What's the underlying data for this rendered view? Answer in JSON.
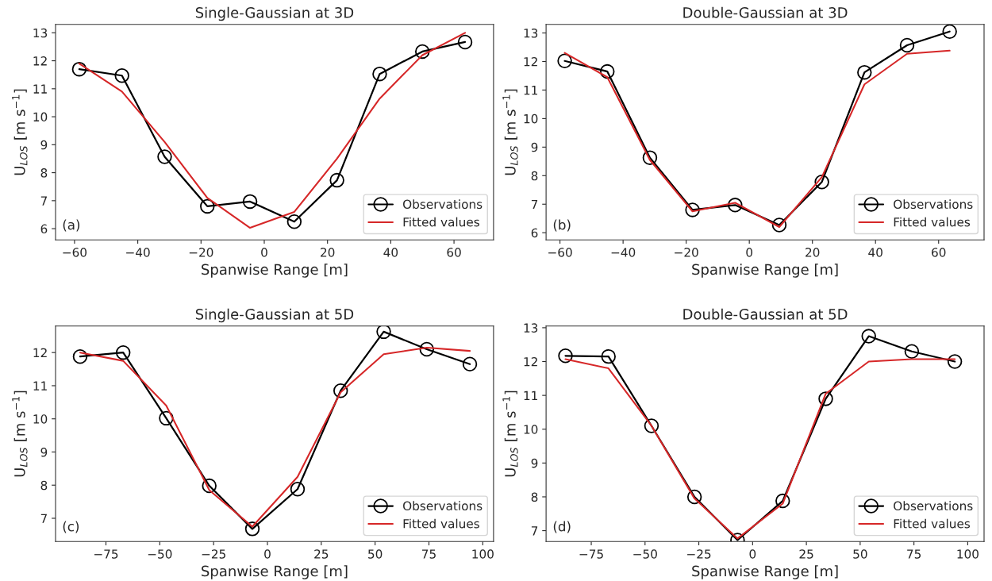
{
  "chart_data": [
    {
      "type": "line",
      "title": "Single-Gaussian at 3D",
      "xlabel": "Spanwise Range [m]",
      "ylabel": "U$_{LOS}$ [m s$^{−1}$]",
      "annotations": [
        "(a)"
      ],
      "x": [
        -58.5,
        -45,
        -31.5,
        -18,
        -4.5,
        9.5,
        23,
        36.5,
        50,
        63.5
      ],
      "series": [
        {
          "name": "Observations",
          "color": "#000000",
          "marker": "circle",
          "values": [
            11.7,
            11.47,
            8.57,
            6.8,
            6.97,
            6.25,
            7.73,
            11.53,
            12.33,
            12.67
          ]
        },
        {
          "name": "Fitted values",
          "color": "#d62728",
          "marker": "none",
          "values": [
            11.9,
            10.9,
            9.1,
            7.1,
            6.03,
            6.6,
            8.5,
            10.65,
            12.2,
            13.0
          ]
        }
      ],
      "xlim": [
        -66,
        72.5
      ],
      "xticks": [
        {
          "value": -60,
          "label": "−60"
        },
        {
          "value": -40,
          "label": "−40"
        },
        {
          "value": -20,
          "label": "−20"
        },
        0,
        20,
        40,
        60
      ],
      "ylim": [
        5.6,
        13.3
      ],
      "yticks": [
        6,
        7,
        8,
        9,
        10,
        11,
        12,
        13
      ],
      "legend": "lower right",
      "grid": false
    },
    {
      "type": "line",
      "title": "Double-Gaussian at 3D",
      "xlabel": "Spanwise Range [m]",
      "ylabel": "U$_{LOS}$ [m s$^{−1}$]",
      "annotations": [
        "(b)"
      ],
      "x": [
        -58.5,
        -45,
        -31.5,
        -18,
        -4.5,
        9.5,
        23,
        36.5,
        50,
        63.5
      ],
      "series": [
        {
          "name": "Observations",
          "color": "#000000",
          "marker": "circle",
          "values": [
            12.02,
            11.65,
            8.63,
            6.8,
            6.97,
            6.27,
            7.78,
            11.62,
            12.57,
            13.05
          ]
        },
        {
          "name": "Fitted values",
          "color": "#d62728",
          "marker": "none",
          "values": [
            12.3,
            11.45,
            8.55,
            6.75,
            7.05,
            6.2,
            7.95,
            11.2,
            12.27,
            12.38
          ]
        }
      ],
      "xlim": [
        -64.4,
        74.4
      ],
      "xticks": [
        {
          "value": -60,
          "label": "−60"
        },
        {
          "value": -40,
          "label": "−40"
        },
        {
          "value": -20,
          "label": "−20"
        },
        0,
        20,
        40,
        60
      ],
      "ylim": [
        5.75,
        13.3
      ],
      "yticks": [
        6,
        7,
        8,
        9,
        10,
        11,
        12,
        13
      ],
      "legend": "lower right",
      "grid": false
    },
    {
      "type": "line",
      "title": "Single-Gaussian at 5D",
      "xlabel": "Spanwise Range [m]",
      "ylabel": "U$_{LOS}$ [m s$^{−1}$]",
      "annotations": [
        "(c)"
      ],
      "x": [
        -87,
        -67,
        -47,
        -27,
        -7,
        14,
        34,
        54,
        74,
        94
      ],
      "series": [
        {
          "name": "Observations",
          "color": "#000000",
          "marker": "circle",
          "values": [
            11.88,
            12.0,
            10.02,
            7.98,
            6.68,
            7.88,
            10.85,
            12.63,
            12.1,
            11.65
          ]
        },
        {
          "name": "Fitted values",
          "color": "#d62728",
          "marker": "none",
          "values": [
            12.0,
            11.75,
            10.4,
            7.85,
            6.75,
            8.25,
            10.8,
            11.95,
            12.15,
            12.05
          ]
        }
      ],
      "xlim": [
        -98.4,
        105
      ],
      "xticks": [
        {
          "value": -75,
          "label": "−75"
        },
        {
          "value": -50,
          "label": "−50"
        },
        {
          "value": -25,
          "label": "−25"
        },
        0,
        25,
        50,
        75,
        100
      ],
      "ylim": [
        6.3,
        12.8
      ],
      "yticks": [
        7,
        8,
        9,
        10,
        11,
        12
      ],
      "legend": "lower right",
      "grid": false
    },
    {
      "type": "line",
      "title": "Double-Gaussian at 5D",
      "xlabel": "Spanwise Range [m]",
      "ylabel": "U$_{LOS}$ [m s$^{−1}$]",
      "annotations": [
        "(d)"
      ],
      "x": [
        -87,
        -67,
        -47,
        -27,
        -7,
        14,
        34,
        54,
        74,
        94
      ],
      "series": [
        {
          "name": "Observations",
          "color": "#000000",
          "marker": "circle",
          "values": [
            12.17,
            12.15,
            10.1,
            8.0,
            6.72,
            7.88,
            10.9,
            12.75,
            12.3,
            12.0
          ]
        },
        {
          "name": "Fitted values",
          "color": "#d62728",
          "marker": "none",
          "values": [
            12.07,
            11.8,
            10.1,
            7.95,
            6.77,
            7.8,
            11.05,
            12.0,
            12.07,
            12.07
          ]
        }
      ],
      "xlim": [
        -96,
        107.6
      ],
      "xticks": [
        {
          "value": -75,
          "label": "−75"
        },
        {
          "value": -50,
          "label": "−50"
        },
        {
          "value": -25,
          "label": "−25"
        },
        0,
        25,
        50,
        75,
        100
      ],
      "ylim": [
        6.68,
        13.05
      ],
      "yticks": [
        7,
        8,
        9,
        10,
        11,
        12,
        13
      ],
      "legend": "lower right",
      "grid": false
    }
  ]
}
